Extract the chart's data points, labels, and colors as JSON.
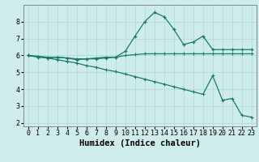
{
  "xlabel": "Humidex (Indice chaleur)",
  "ylabel": "",
  "background_color": "#ceecea",
  "grid_color": "#aed8d4",
  "line_color": "#1a7a6e",
  "xlim": [
    -0.5,
    23.5
  ],
  "ylim": [
    1.8,
    9.0
  ],
  "yticks": [
    2,
    3,
    4,
    5,
    6,
    7,
    8
  ],
  "xticks": [
    0,
    1,
    2,
    3,
    4,
    5,
    6,
    7,
    8,
    9,
    10,
    11,
    12,
    13,
    14,
    15,
    16,
    17,
    18,
    19,
    20,
    21,
    22,
    23
  ],
  "line1_x": [
    0,
    1,
    2,
    3,
    4,
    5,
    6,
    7,
    8,
    9,
    10,
    11,
    12,
    13,
    14,
    15,
    16,
    17,
    18,
    19,
    20,
    21,
    22,
    23
  ],
  "line1_y": [
    6.0,
    5.9,
    5.85,
    5.9,
    5.85,
    5.75,
    5.8,
    5.85,
    5.9,
    5.9,
    6.25,
    7.15,
    8.0,
    8.55,
    8.3,
    7.55,
    6.65,
    6.8,
    7.15,
    6.35,
    6.35,
    6.35,
    6.35,
    6.35
  ],
  "line2_x": [
    0,
    1,
    2,
    3,
    4,
    5,
    6,
    7,
    8,
    9,
    10,
    11,
    12,
    13,
    14,
    15,
    16,
    17,
    18,
    19,
    20,
    21,
    22,
    23
  ],
  "line2_y": [
    6.0,
    5.95,
    5.9,
    5.9,
    5.85,
    5.8,
    5.8,
    5.8,
    5.85,
    5.9,
    6.0,
    6.05,
    6.1,
    6.1,
    6.1,
    6.1,
    6.1,
    6.1,
    6.1,
    6.1,
    6.1,
    6.1,
    6.1,
    6.1
  ],
  "line3_x": [
    0,
    1,
    2,
    3,
    4,
    5,
    6,
    7,
    8,
    9,
    10,
    11,
    12,
    13,
    14,
    15,
    16,
    17,
    18,
    19,
    20,
    21,
    22,
    23
  ],
  "line3_y": [
    6.0,
    5.95,
    5.85,
    5.75,
    5.65,
    5.55,
    5.4,
    5.3,
    5.15,
    5.05,
    4.9,
    4.75,
    4.6,
    4.45,
    4.3,
    4.15,
    4.0,
    3.85,
    3.7,
    4.8,
    3.35,
    3.45,
    2.45,
    2.35
  ],
  "tick_fontsize": 6,
  "label_fontsize": 7.5
}
